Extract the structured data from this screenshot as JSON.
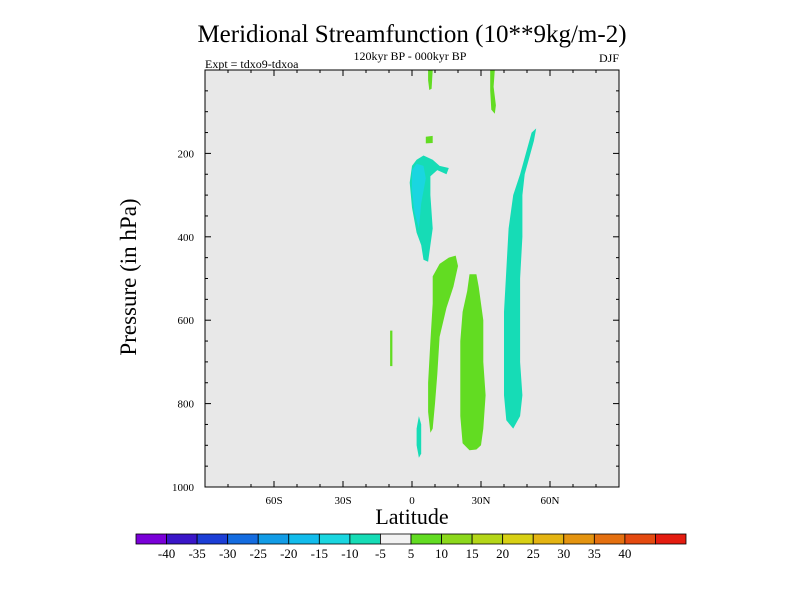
{
  "chart_data": {
    "type": "heatmap",
    "title": "Meridional Streamfunction (10**9kg/m-2)",
    "subtitle": "120kyr BP - 000kyr BP",
    "left_label": "Expt = tdxo9-tdxoa",
    "right_label": "DJF",
    "xlabel": "Latitude",
    "ylabel": "Pressure (in hPa)",
    "xlim": [
      -90,
      90
    ],
    "ylim": [
      1000,
      0
    ],
    "x_ticks": [
      {
        "value": -60,
        "label": "60S"
      },
      {
        "value": -30,
        "label": "30S"
      },
      {
        "value": 0,
        "label": "0"
      },
      {
        "value": 30,
        "label": "30N"
      },
      {
        "value": 60,
        "label": "60N"
      }
    ],
    "y_ticks": [
      {
        "value": 200,
        "label": "200"
      },
      {
        "value": 400,
        "label": "400"
      },
      {
        "value": 600,
        "label": "600"
      },
      {
        "value": 800,
        "label": "800"
      },
      {
        "value": 1000,
        "label": "1000"
      }
    ],
    "missing_color": "#e8e8e8",
    "colorbar": {
      "colors": [
        "#7a00d8",
        "#3a16c8",
        "#1c3ed6",
        "#146ce0",
        "#129ce6",
        "#12bcec",
        "#1ad6e0",
        "#16dcb6",
        "#f2f2f2",
        "#62dc22",
        "#8cd81c",
        "#b4d618",
        "#d8d014",
        "#e4b412",
        "#e49410",
        "#e47010",
        "#e44a10",
        "#e41c10"
      ],
      "labels": [
        "-40",
        "-35",
        "-30",
        "-25",
        "-20",
        "-15",
        "-10",
        "-5",
        "5",
        "10",
        "15",
        "20",
        "25",
        "30",
        "35",
        "40"
      ]
    },
    "regions": [
      {
        "name": "positive-5-10-upper-narrow",
        "color": "#62dc22",
        "value_range": [
          5,
          10
        ],
        "points": [
          [
            7,
            0
          ],
          [
            9,
            0
          ],
          [
            8.5,
            45
          ],
          [
            7.5,
            48
          ],
          [
            7,
            25
          ]
        ]
      },
      {
        "name": "positive-5-10-nh-upper",
        "color": "#62dc22",
        "value_range": [
          5,
          10
        ],
        "points": [
          [
            34,
            0
          ],
          [
            36,
            0
          ],
          [
            35.5,
            40
          ],
          [
            36.5,
            85
          ],
          [
            36,
            105
          ],
          [
            34.5,
            95
          ],
          [
            34,
            50
          ]
        ]
      },
      {
        "name": "positive-5-10-small-blob",
        "color": "#62dc22",
        "value_range": [
          5,
          10
        ],
        "points": [
          [
            6,
            160
          ],
          [
            9,
            158
          ],
          [
            9,
            175
          ],
          [
            6,
            176
          ]
        ]
      },
      {
        "name": "negative-10-5-upper-tropics",
        "color": "#16dcb6",
        "value_range": [
          -10,
          -5
        ],
        "points": [
          [
            0,
            230
          ],
          [
            2,
            215
          ],
          [
            5,
            205
          ],
          [
            9,
            215
          ],
          [
            12,
            230
          ],
          [
            16,
            235
          ],
          [
            15,
            250
          ],
          [
            11,
            240
          ],
          [
            8,
            255
          ],
          [
            8,
            300
          ],
          [
            9,
            380
          ],
          [
            7,
            460
          ],
          [
            5,
            455
          ],
          [
            4,
            420
          ],
          [
            2,
            390
          ],
          [
            0,
            330
          ],
          [
            -1,
            270
          ]
        ]
      },
      {
        "name": "negative-15-10-core",
        "color": "#1ad6e0",
        "value_range": [
          -15,
          -10
        ],
        "points": [
          [
            0,
            240
          ],
          [
            2,
            225
          ],
          [
            5,
            230
          ],
          [
            6,
            260
          ],
          [
            4,
            320
          ],
          [
            3,
            380
          ],
          [
            1,
            340
          ],
          [
            0,
            290
          ]
        ]
      },
      {
        "name": "positive-5-10-nh-lower-narrow",
        "color": "#62dc22",
        "value_range": [
          5,
          10
        ],
        "points": [
          [
            9,
            495
          ],
          [
            12,
            465
          ],
          [
            16,
            450
          ],
          [
            19,
            445
          ],
          [
            20,
            470
          ],
          [
            18,
            520
          ],
          [
            15,
            570
          ],
          [
            12,
            640
          ],
          [
            11,
            730
          ],
          [
            10,
            800
          ],
          [
            9,
            860
          ],
          [
            8,
            870
          ],
          [
            7,
            820
          ],
          [
            7,
            750
          ],
          [
            8,
            650
          ],
          [
            9,
            560
          ]
        ]
      },
      {
        "name": "positive-5-10-nh-lower-wide",
        "color": "#62dc22",
        "value_range": [
          5,
          10
        ],
        "points": [
          [
            25,
            490
          ],
          [
            28,
            490
          ],
          [
            29,
            520
          ],
          [
            31,
            600
          ],
          [
            31,
            700
          ],
          [
            32,
            780
          ],
          [
            31,
            860
          ],
          [
            30,
            900
          ],
          [
            28,
            910
          ],
          [
            25,
            912
          ],
          [
            22,
            895
          ],
          [
            21,
            830
          ],
          [
            21,
            740
          ],
          [
            21,
            650
          ],
          [
            22,
            580
          ],
          [
            24,
            530
          ]
        ]
      },
      {
        "name": "negative-10-5-nh-column",
        "color": "#16dcb6",
        "value_range": [
          -10,
          -5
        ],
        "points": [
          [
            52,
            150
          ],
          [
            54,
            140
          ],
          [
            53,
            170
          ],
          [
            51,
            210
          ],
          [
            49,
            250
          ],
          [
            48,
            300
          ],
          [
            48,
            400
          ],
          [
            47,
            500
          ],
          [
            47,
            600
          ],
          [
            47,
            700
          ],
          [
            48,
            780
          ],
          [
            47,
            830
          ],
          [
            44,
            860
          ],
          [
            41,
            840
          ],
          [
            40,
            780
          ],
          [
            40,
            680
          ],
          [
            40,
            580
          ],
          [
            41,
            480
          ],
          [
            42,
            380
          ],
          [
            44,
            300
          ],
          [
            47,
            250
          ],
          [
            50,
            190
          ]
        ]
      },
      {
        "name": "negative-10-5-sh-lower",
        "color": "#16dcb6",
        "value_range": [
          -10,
          -5
        ],
        "points": [
          [
            3,
            830
          ],
          [
            4,
            850
          ],
          [
            4,
            920
          ],
          [
            3,
            930
          ],
          [
            2,
            900
          ],
          [
            2,
            860
          ]
        ]
      },
      {
        "name": "positive-5-10-sh-sliver",
        "color": "#62dc22",
        "value_range": [
          5,
          10
        ],
        "points": [
          [
            -9.5,
            625
          ],
          [
            -8.5,
            625
          ],
          [
            -8.5,
            710
          ],
          [
            -9.5,
            710
          ]
        ]
      }
    ]
  }
}
